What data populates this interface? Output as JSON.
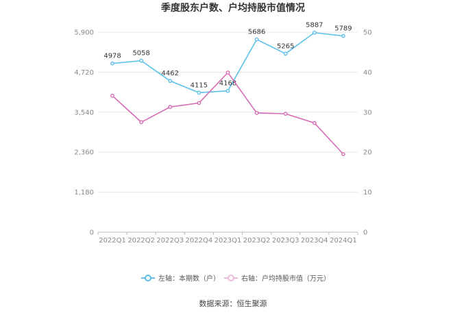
{
  "chart_data": {
    "type": "line",
    "title": "季度股东户数、户均持股市值情况",
    "categories": [
      "2022Q1",
      "2022Q2",
      "2022Q3",
      "2022Q4",
      "2023Q1",
      "2023Q2",
      "2023Q3",
      "2023Q4",
      "2024Q1"
    ],
    "left_axis": {
      "min": 0,
      "max": 5900,
      "ticks": [
        "0",
        "1,180",
        "2,360",
        "3,540",
        "4,720",
        "5,900"
      ],
      "tick_values": [
        0,
        1180,
        2360,
        3540,
        4720,
        5900
      ]
    },
    "right_axis": {
      "min": 0,
      "max": 50,
      "ticks": [
        "0",
        "10",
        "20",
        "30",
        "40",
        "50"
      ],
      "tick_values": [
        0,
        10,
        20,
        30,
        40,
        50
      ]
    },
    "series": [
      {
        "name": "左轴：本期数（户）",
        "axis": "left",
        "color": "#5bc0eb",
        "values": [
          4978,
          5058,
          4462,
          4115,
          4168,
          5686,
          5265,
          5887,
          5789
        ],
        "labels": [
          "4978",
          "5058",
          "4462",
          "4115",
          "4168",
          "5686",
          "5265",
          "5887",
          "5789"
        ]
      },
      {
        "name": "右轴：户均持股市值（万元）",
        "axis": "right",
        "color": "#d66bb5",
        "values": [
          34.1,
          27.5,
          31.3,
          32.3,
          39.9,
          29.8,
          29.6,
          27.3,
          19.5
        ]
      }
    ],
    "grid": true,
    "legend_position": "bottom"
  },
  "footer": {
    "source": "数据来源：恒生聚源"
  }
}
